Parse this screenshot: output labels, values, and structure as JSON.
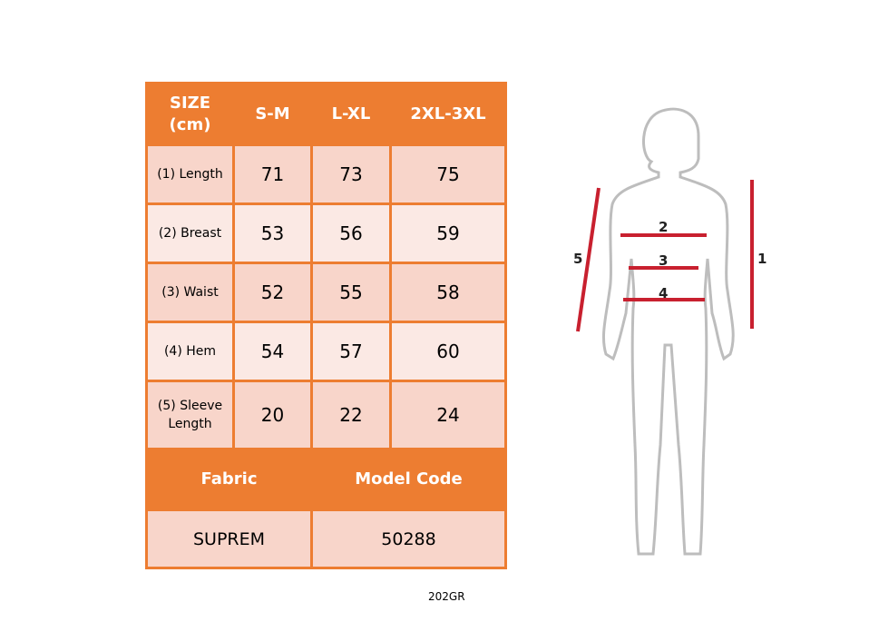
{
  "table": {
    "header": [
      "SIZE (cm)",
      "S-M",
      "L-XL",
      "2XL-3XL"
    ],
    "rows": [
      {
        "label": "(1) Length",
        "values": [
          "71",
          "73",
          "75"
        ]
      },
      {
        "label": "(2) Breast",
        "values": [
          "53",
          "56",
          "59"
        ]
      },
      {
        "label": "(3) Waist",
        "values": [
          "52",
          "55",
          "58"
        ]
      },
      {
        "label": "(4) Hem",
        "values": [
          "54",
          "57",
          "60"
        ]
      },
      {
        "label": "(5) Sleeve Length",
        "values": [
          "20",
          "22",
          "24"
        ]
      }
    ],
    "fabric_label": "Fabric",
    "model_code_label": "Model Code",
    "fabric": "SUPREM",
    "model_code": "50288"
  },
  "figure": {
    "labels": [
      "1",
      "2",
      "3",
      "4",
      "5"
    ],
    "line_color": "#C8202F"
  },
  "footer_code": "202GR",
  "colors": {
    "orange": "#ED7D31",
    "row_dark": "#F8D5CA",
    "row_light": "#FBE9E4"
  }
}
